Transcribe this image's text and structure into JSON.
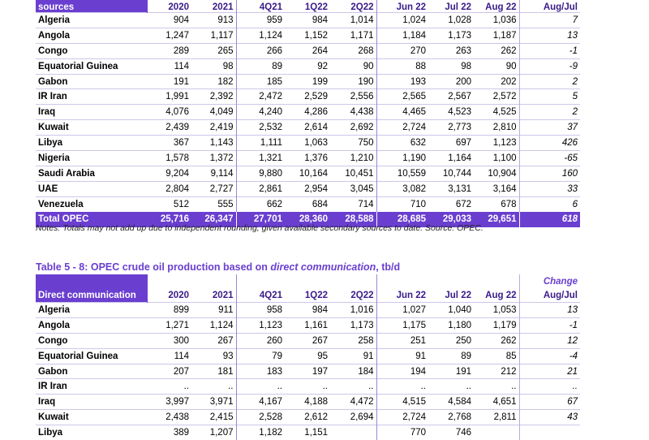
{
  "table1": {
    "columns": [
      "sources",
      "2020",
      "2021",
      "4Q21",
      "1Q22",
      "2Q22",
      "Jun 22",
      "Jul 22",
      "Aug 22",
      "Aug/Jul"
    ],
    "rows": [
      [
        "Algeria",
        "904",
        "913",
        "959",
        "984",
        "1,014",
        "1,024",
        "1,028",
        "1,036",
        "7"
      ],
      [
        "Angola",
        "1,247",
        "1,117",
        "1,124",
        "1,152",
        "1,171",
        "1,184",
        "1,173",
        "1,187",
        "13"
      ],
      [
        "Congo",
        "289",
        "265",
        "266",
        "264",
        "268",
        "270",
        "263",
        "262",
        "-1"
      ],
      [
        "Equatorial Guinea",
        "114",
        "98",
        "89",
        "92",
        "90",
        "88",
        "98",
        "90",
        "-9"
      ],
      [
        "Gabon",
        "191",
        "182",
        "185",
        "199",
        "190",
        "193",
        "200",
        "202",
        "2"
      ],
      [
        "IR Iran",
        "1,991",
        "2,392",
        "2,472",
        "2,529",
        "2,556",
        "2,565",
        "2,567",
        "2,572",
        "5"
      ],
      [
        "Iraq",
        "4,076",
        "4,049",
        "4,240",
        "4,286",
        "4,438",
        "4,465",
        "4,523",
        "4,525",
        "2"
      ],
      [
        "Kuwait",
        "2,439",
        "2,419",
        "2,532",
        "2,614",
        "2,692",
        "2,724",
        "2,773",
        "2,810",
        "37"
      ],
      [
        "Libya",
        "367",
        "1,143",
        "1,111",
        "1,063",
        "750",
        "632",
        "697",
        "1,123",
        "426"
      ],
      [
        "Nigeria",
        "1,578",
        "1,372",
        "1,321",
        "1,376",
        "1,210",
        "1,190",
        "1,164",
        "1,100",
        "-65"
      ],
      [
        "Saudi Arabia",
        "9,204",
        "9,114",
        "9,880",
        "10,164",
        "10,451",
        "10,559",
        "10,744",
        "10,904",
        "160"
      ],
      [
        "UAE",
        "2,804",
        "2,727",
        "2,861",
        "2,954",
        "3,045",
        "3,082",
        "3,131",
        "3,164",
        "33"
      ],
      [
        "Venezuela",
        "512",
        "555",
        "662",
        "684",
        "714",
        "710",
        "672",
        "678",
        "6"
      ]
    ],
    "total": [
      "Total  OPEC",
      "25,716",
      "26,347",
      "27,701",
      "28,360",
      "28,588",
      "28,685",
      "29,033",
      "29,651",
      "618"
    ]
  },
  "note": "Notes: Totals may not add up due to independent rounding, given available secondary sources to date. Source: OPEC.",
  "caption": {
    "prefix": "Table 5 - 8: OPEC crude oil production based on ",
    "emphasis": "direct communication",
    "suffix": ", tb/d"
  },
  "table2": {
    "change_label": "Change",
    "columns": [
      "Direct communication",
      "2020",
      "2021",
      "4Q21",
      "1Q22",
      "2Q22",
      "Jun 22",
      "Jul 22",
      "Aug 22",
      "Aug/Jul"
    ],
    "rows": [
      [
        "Algeria",
        "899",
        "911",
        "958",
        "984",
        "1,016",
        "1,027",
        "1,040",
        "1,053",
        "13"
      ],
      [
        "Angola",
        "1,271",
        "1,124",
        "1,123",
        "1,161",
        "1,173",
        "1,175",
        "1,180",
        "1,179",
        "-1"
      ],
      [
        "Congo",
        "300",
        "267",
        "260",
        "267",
        "258",
        "251",
        "250",
        "262",
        "12"
      ],
      [
        "Equatorial Guinea",
        "114",
        "93",
        "79",
        "95",
        "91",
        "91",
        "89",
        "85",
        "-4"
      ],
      [
        "Gabon",
        "207",
        "181",
        "183",
        "197",
        "184",
        "194",
        "191",
        "212",
        "21"
      ],
      [
        "IR Iran",
        "..",
        "..",
        "..",
        "..",
        "..",
        "..",
        "..",
        "..",
        ".."
      ],
      [
        "Iraq",
        "3,997",
        "3,971",
        "4,167",
        "4,188",
        "4,472",
        "4,515",
        "4,584",
        "4,651",
        "67"
      ],
      [
        "Kuwait",
        "2,438",
        "2,415",
        "2,528",
        "2,612",
        "2,694",
        "2,724",
        "2,768",
        "2,811",
        "43"
      ],
      [
        "Libya",
        "389",
        "1,207",
        "1,182",
        "1,151",
        "",
        "770",
        "746",
        "",
        ""
      ]
    ]
  }
}
